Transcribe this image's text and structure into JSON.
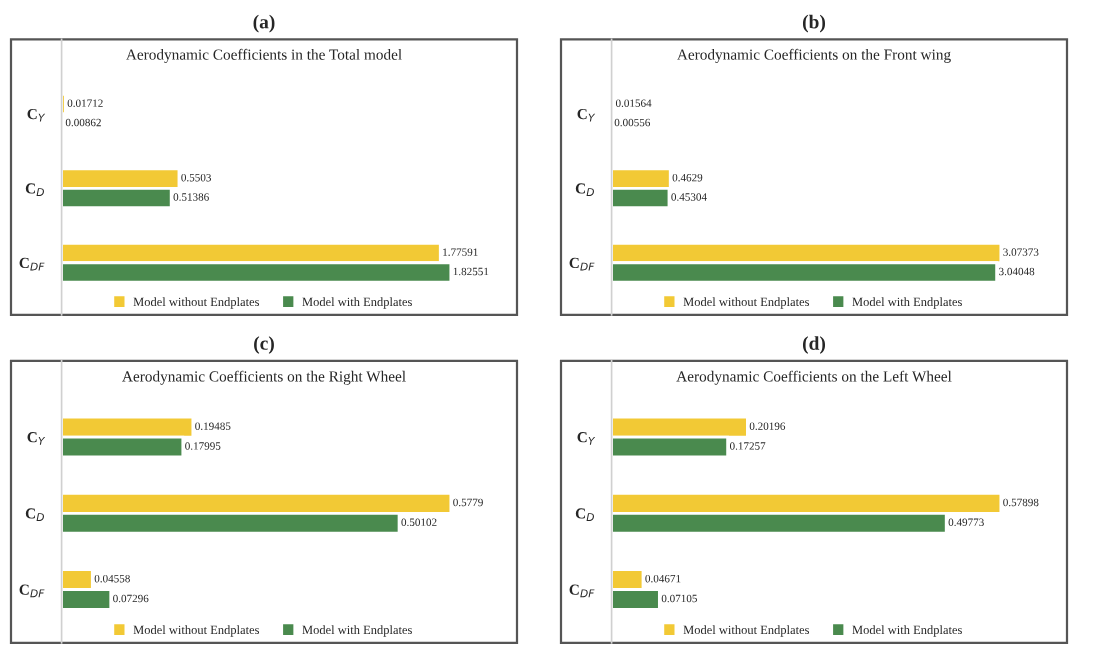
{
  "chart_data": [
    {
      "type": "bar",
      "orientation": "horizontal",
      "title": "(a)",
      "subtitle": "Aerodynamic Coefficients in the Total model",
      "categories": [
        "C$_{Y}$",
        "C$_{D}$",
        "C$_{DF}$"
      ],
      "series": [
        {
          "name": "Model without Endplates",
          "color": "#f2c935",
          "values": [
            0.01712,
            0.5503,
            1.77591
          ]
        },
        {
          "name": "Model with Endplates",
          "color": "#4a8a4e",
          "values": [
            0.00862,
            0.51386,
            1.82551
          ]
        }
      ],
      "data_labels": true,
      "legend": "bottom",
      "tick_labels": "y",
      "grid": false
    },
    {
      "type": "bar",
      "orientation": "horizontal",
      "title": "(b)",
      "subtitle": "Aerodynamic Coefficients on the Front wing",
      "categories": [
        "C$_{Y}$",
        "C$_{D}$",
        "C$_{DF}$"
      ],
      "series": [
        {
          "name": "Model without Endplates",
          "color": "#f2c935",
          "values": [
            0.01564,
            0.4629,
            3.07373
          ]
        },
        {
          "name": "Model with Endplates",
          "color": "#4a8a4e",
          "values": [
            0.00556,
            0.45304,
            3.04048
          ]
        }
      ],
      "data_labels": true,
      "legend": "bottom",
      "tick_labels": "y",
      "grid": false
    },
    {
      "type": "bar",
      "orientation": "horizontal",
      "title": "(c)",
      "subtitle": "Aerodynamic Coefficients on the Right Wheel",
      "categories": [
        "C$_{Y}$",
        "C$_{D}$",
        "C$_{DF}$"
      ],
      "series": [
        {
          "name": "Model without Endplates",
          "color": "#f2c935",
          "values": [
            0.19485,
            0.5779,
            0.04558
          ]
        },
        {
          "name": "Model with Endplates",
          "color": "#4a8a4e",
          "values": [
            0.17995,
            0.50102,
            0.07296
          ]
        }
      ],
      "data_labels": true,
      "legend": "bottom",
      "tick_labels": "y",
      "grid": false
    },
    {
      "type": "bar",
      "orientation": "horizontal",
      "title": "(d)",
      "subtitle": "Aerodynamic Coefficients on the Left Wheel",
      "categories": [
        "C$_{Y}$",
        "C$_{D}$",
        "C$_{DF}$"
      ],
      "series": [
        {
          "name": "Model without Endplates",
          "color": "#f2c935",
          "values": [
            0.20196,
            0.57898,
            0.04671
          ]
        },
        {
          "name": "Model with Endplates",
          "color": "#4a8a4e",
          "values": [
            0.17257,
            0.49773,
            0.07105
          ]
        }
      ],
      "data_labels": true,
      "legend": "bottom",
      "tick_labels": "y",
      "grid": false
    }
  ]
}
